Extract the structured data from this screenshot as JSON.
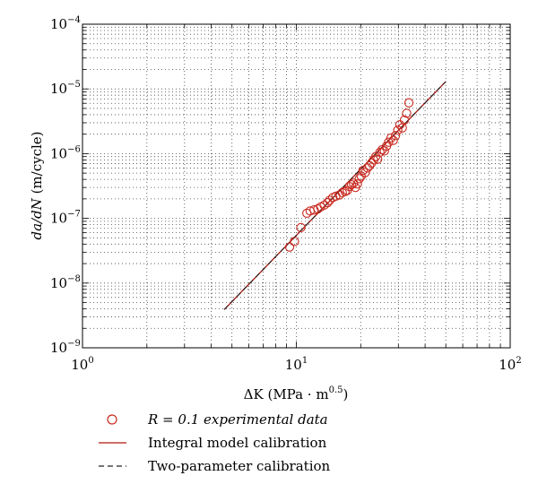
{
  "chart_data": {
    "type": "scatter",
    "x_scale": "log",
    "y_scale": "log",
    "xlim": [
      1,
      100
    ],
    "ylim": [
      1e-09,
      0.0001
    ],
    "grid": true,
    "legend_placement": "below",
    "x_ticks": [
      {
        "value": 1,
        "base": "10",
        "exp": "0"
      },
      {
        "value": 10,
        "base": "10",
        "exp": "1"
      },
      {
        "value": 100,
        "base": "10",
        "exp": "2"
      }
    ],
    "y_ticks": [
      {
        "value": 1e-09,
        "base": "10",
        "exp": "−9"
      },
      {
        "value": 1e-08,
        "base": "10",
        "exp": "−8"
      },
      {
        "value": 1e-07,
        "base": "10",
        "exp": "−7"
      },
      {
        "value": 1e-06,
        "base": "10",
        "exp": "−6"
      },
      {
        "value": 1e-05,
        "base": "10",
        "exp": "−5"
      },
      {
        "value": 0.0001,
        "base": "10",
        "exp": "−4"
      }
    ],
    "xlabel": {
      "main": "ΔK (MPa · m",
      "exp": "0.5",
      "close": ")"
    },
    "ylabel": {
      "main": "da/dN",
      "units": " (m/cycle)"
    },
    "colors": {
      "experimental": "#c8281e",
      "integral": "#b0160c",
      "two_param": "#222222"
    },
    "series": [
      {
        "name": "R = 0.1 experimental data",
        "style": "circle",
        "points": [
          [
            9.3,
            3.6e-08
          ],
          [
            9.8,
            4.4e-08
          ],
          [
            10.5,
            7.2e-08
          ],
          [
            11.2,
            1.2e-07
          ],
          [
            11.6,
            1.3e-07
          ],
          [
            12.1,
            1.35e-07
          ],
          [
            12.6,
            1.4e-07
          ],
          [
            13.0,
            1.5e-07
          ],
          [
            13.5,
            1.6e-07
          ],
          [
            14.0,
            1.75e-07
          ],
          [
            14.3,
            1.9e-07
          ],
          [
            14.8,
            2.1e-07
          ],
          [
            15.3,
            2.2e-07
          ],
          [
            15.9,
            2.3e-07
          ],
          [
            16.4,
            2.5e-07
          ],
          [
            16.9,
            2.6e-07
          ],
          [
            17.3,
            2.7e-07
          ],
          [
            17.7,
            3.1e-07
          ],
          [
            18.1,
            3.3e-07
          ],
          [
            18.5,
            3.5e-07
          ],
          [
            18.9,
            3e-07
          ],
          [
            19.3,
            3.4e-07
          ],
          [
            19.7,
            4.1e-07
          ],
          [
            20.1,
            4.5e-07
          ],
          [
            20.5,
            5.5e-07
          ],
          [
            21.0,
            5.1e-07
          ],
          [
            21.5,
            6e-07
          ],
          [
            22.0,
            6.5e-07
          ],
          [
            22.5,
            7.2e-07
          ],
          [
            23.0,
            8e-07
          ],
          [
            23.5,
            9e-07
          ],
          [
            24.0,
            8.2e-07
          ],
          [
            24.6,
            1.05e-06
          ],
          [
            25.2,
            1.15e-06
          ],
          [
            25.8,
            1.1e-06
          ],
          [
            26.4,
            1.3e-06
          ],
          [
            27.0,
            1.5e-06
          ],
          [
            27.7,
            1.75e-06
          ],
          [
            28.4,
            1.6e-06
          ],
          [
            29.1,
            1.9e-06
          ],
          [
            29.8,
            2.3e-06
          ],
          [
            30.5,
            2.8e-06
          ],
          [
            31.3,
            2.5e-06
          ],
          [
            32.0,
            3.3e-06
          ],
          [
            32.8,
            4.2e-06
          ],
          [
            33.6,
            6.1e-06
          ]
        ]
      },
      {
        "name": "Integral model calibration",
        "style": "solid",
        "points": [
          [
            4.6,
            3.9e-09
          ],
          [
            50.0,
            1.3e-05
          ]
        ]
      },
      {
        "name": "Two-parameter calibration",
        "style": "dashed",
        "points": [
          [
            4.6,
            3.9e-09
          ],
          [
            50.0,
            1.3e-05
          ]
        ]
      }
    ]
  }
}
